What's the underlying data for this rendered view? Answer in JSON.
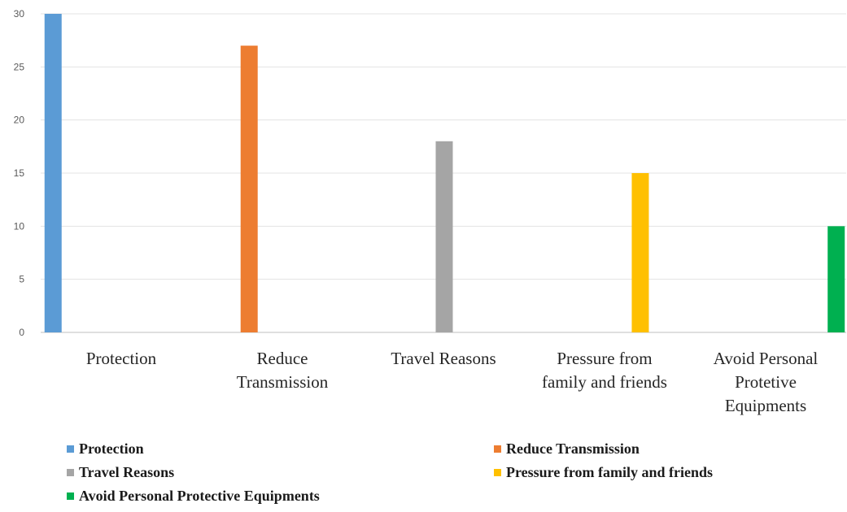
{
  "chart_data": {
    "type": "bar",
    "categories": [
      [
        "Protection"
      ],
      [
        "Reduce",
        "Transmission"
      ],
      [
        "Travel Reasons"
      ],
      [
        "Pressure from",
        "family and friends"
      ],
      [
        "Avoid Personal",
        "Protetive",
        "Equipments"
      ]
    ],
    "series": [
      {
        "name": "Protection",
        "color": "#5B9BD5",
        "values": [
          30,
          null,
          null,
          null,
          null
        ]
      },
      {
        "name": "Reduce Transmission",
        "color": "#ED7D31",
        "values": [
          null,
          27,
          null,
          null,
          null
        ]
      },
      {
        "name": "Travel Reasons",
        "color": "#A5A5A5",
        "values": [
          null,
          null,
          18,
          null,
          null
        ]
      },
      {
        "name": "Pressure from family and friends",
        "color": "#FFC000",
        "values": [
          null,
          null,
          null,
          15,
          null
        ]
      },
      {
        "name": "Avoid Personal Protective Equipments",
        "color": "#00B050",
        "values": [
          null,
          null,
          null,
          null,
          10
        ]
      }
    ],
    "yticks": [
      0,
      5,
      10,
      15,
      20,
      25,
      30
    ],
    "ylim": [
      0,
      30
    ],
    "grid": true,
    "legend_position": "bottom"
  }
}
